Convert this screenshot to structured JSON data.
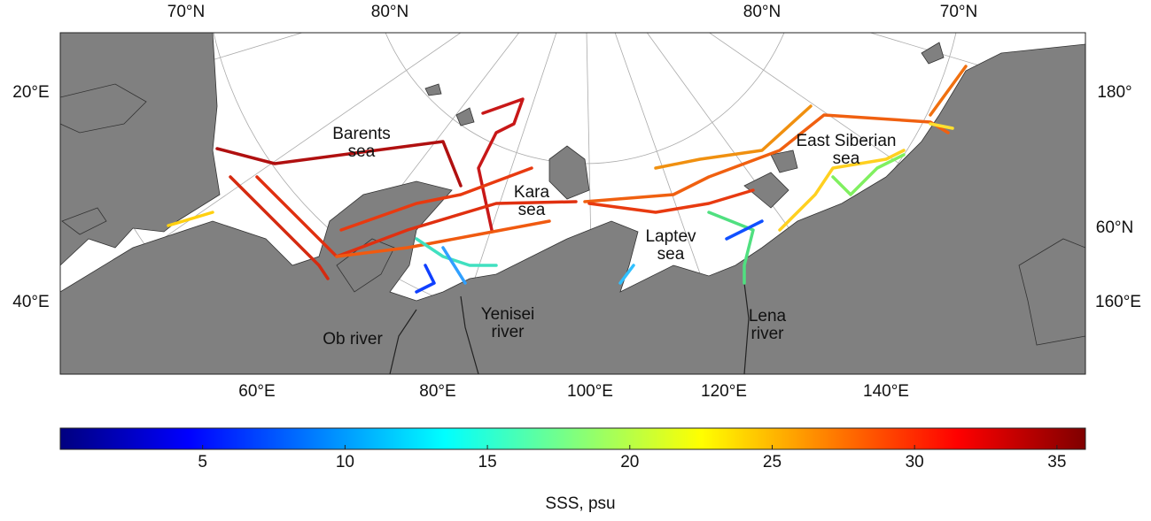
{
  "map": {
    "top_labels": [
      "70°N",
      "80°N",
      "80°N",
      "70°N"
    ],
    "left_labels": [
      "20°E",
      "40°E"
    ],
    "right_labels": [
      "180°",
      "60°N",
      "160°E"
    ],
    "bottom_labels": [
      "60°E",
      "80°E",
      "100°E",
      "120°E",
      "140°E"
    ],
    "places": [
      {
        "lines": [
          "Barents",
          "sea"
        ]
      },
      {
        "lines": [
          "Kara",
          "sea"
        ]
      },
      {
        "lines": [
          "Laptev",
          "sea"
        ]
      },
      {
        "lines": [
          "East Siberian",
          "sea"
        ]
      },
      {
        "lines": [
          "Yenisei",
          "river"
        ]
      },
      {
        "lines": [
          "Ob river"
        ]
      },
      {
        "lines": [
          "Lena",
          "river"
        ]
      }
    ]
  },
  "colorbar": {
    "label": "SSS, psu",
    "range": [
      0,
      36
    ],
    "ticks": [
      5,
      10,
      15,
      20,
      25,
      30,
      35
    ],
    "colormap": "jet"
  }
}
